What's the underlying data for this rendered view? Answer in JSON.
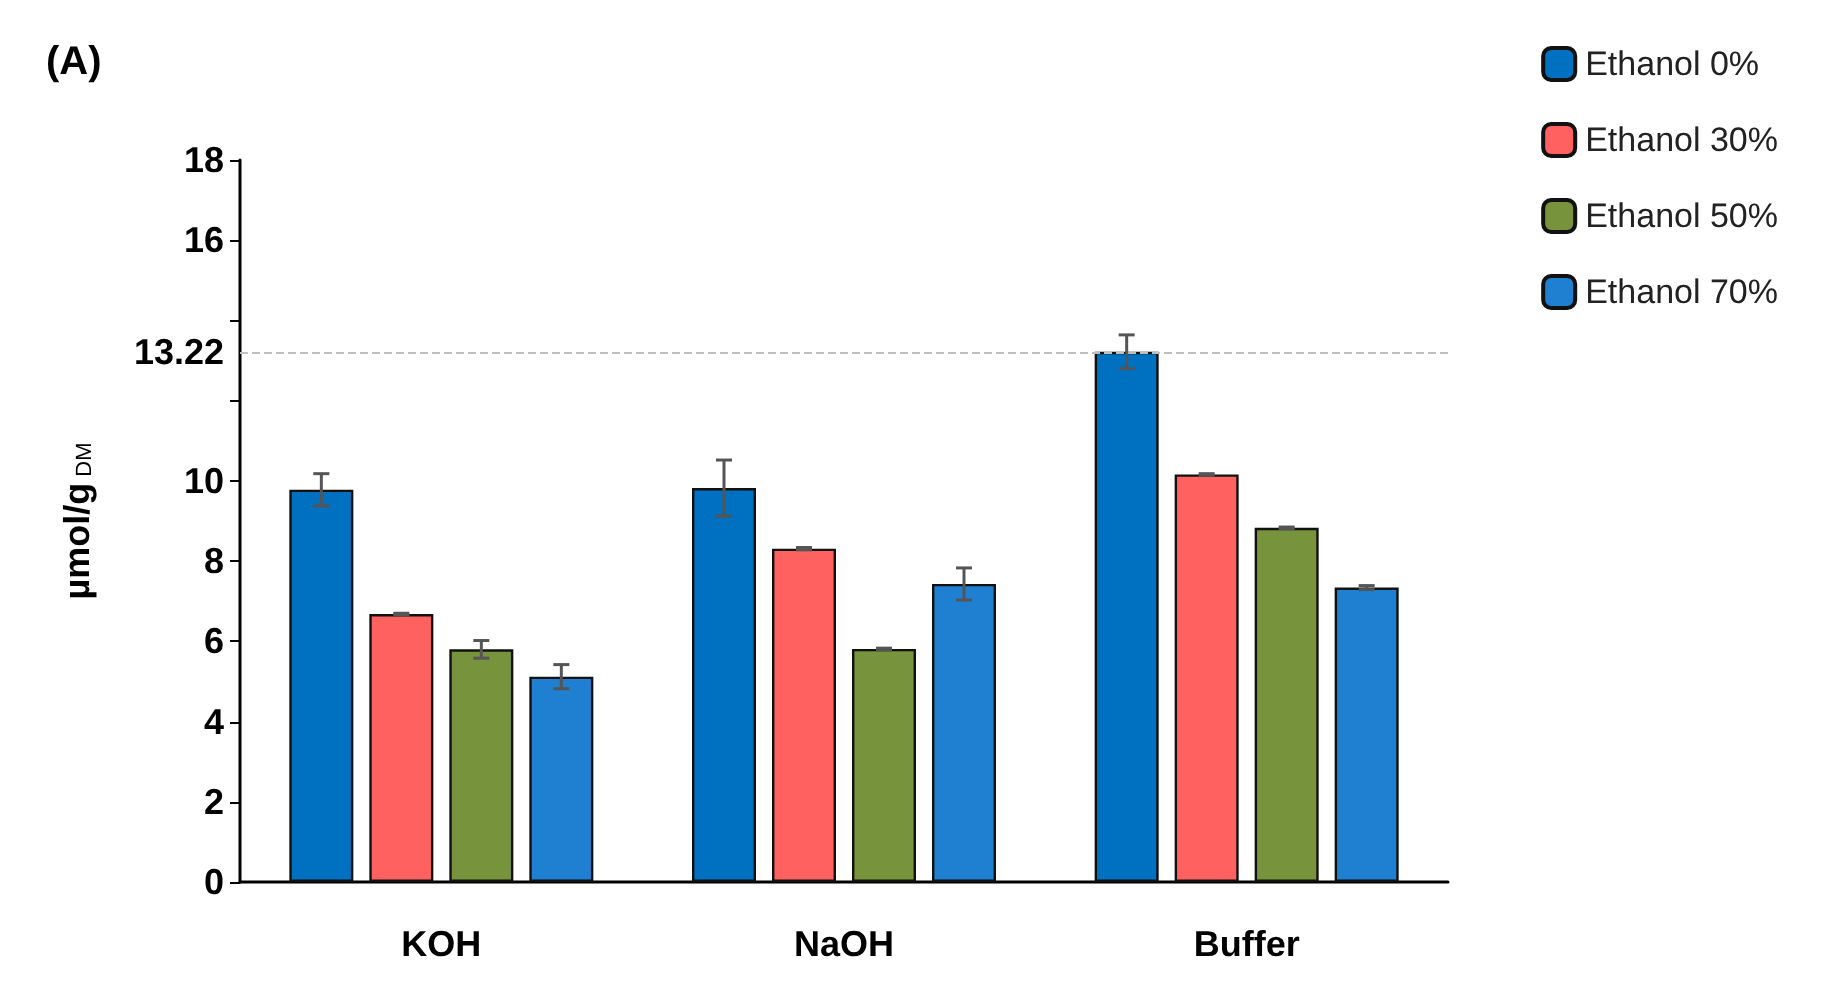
{
  "chart_data": {
    "type": "bar",
    "title": "(A)",
    "ylabel": "µmol/g$_{DM}$",
    "categories": [
      "KOH",
      "NaOH",
      "Buffer"
    ],
    "series": [
      {
        "name": "Ethanol 0%",
        "color": "#0070c0",
        "values": [
          9.78,
          9.82,
          13.22
        ],
        "errors": [
          0.4,
          0.7,
          0.42
        ]
      },
      {
        "name": "Ethanol 30%",
        "color": "#ff6161",
        "values": [
          6.68,
          8.31,
          10.16
        ],
        "errors": [
          0.02,
          0.03,
          0.02
        ]
      },
      {
        "name": "Ethanol 50%",
        "color": "#77933c",
        "values": [
          5.8,
          5.81,
          8.83
        ],
        "errors": [
          0.22,
          0.02,
          0.02
        ]
      },
      {
        "name": "Ethanol 70%",
        "color": "#1f7fd0",
        "values": [
          5.12,
          7.43,
          7.34
        ],
        "errors": [
          0.3,
          0.4,
          0.05
        ]
      }
    ],
    "ylim": [
      0,
      18
    ],
    "yticks": [
      0,
      2,
      4,
      6,
      8,
      10,
      {
        "value": 12,
        "label": null
      },
      13.22,
      {
        "value": 14,
        "label": null
      },
      16,
      18
    ],
    "ref_lines": [
      {
        "axis": "y",
        "value": 13.22,
        "color": "#bfbfbf",
        "line_style": "dashed"
      }
    ],
    "grid": false,
    "legend": "top right"
  }
}
